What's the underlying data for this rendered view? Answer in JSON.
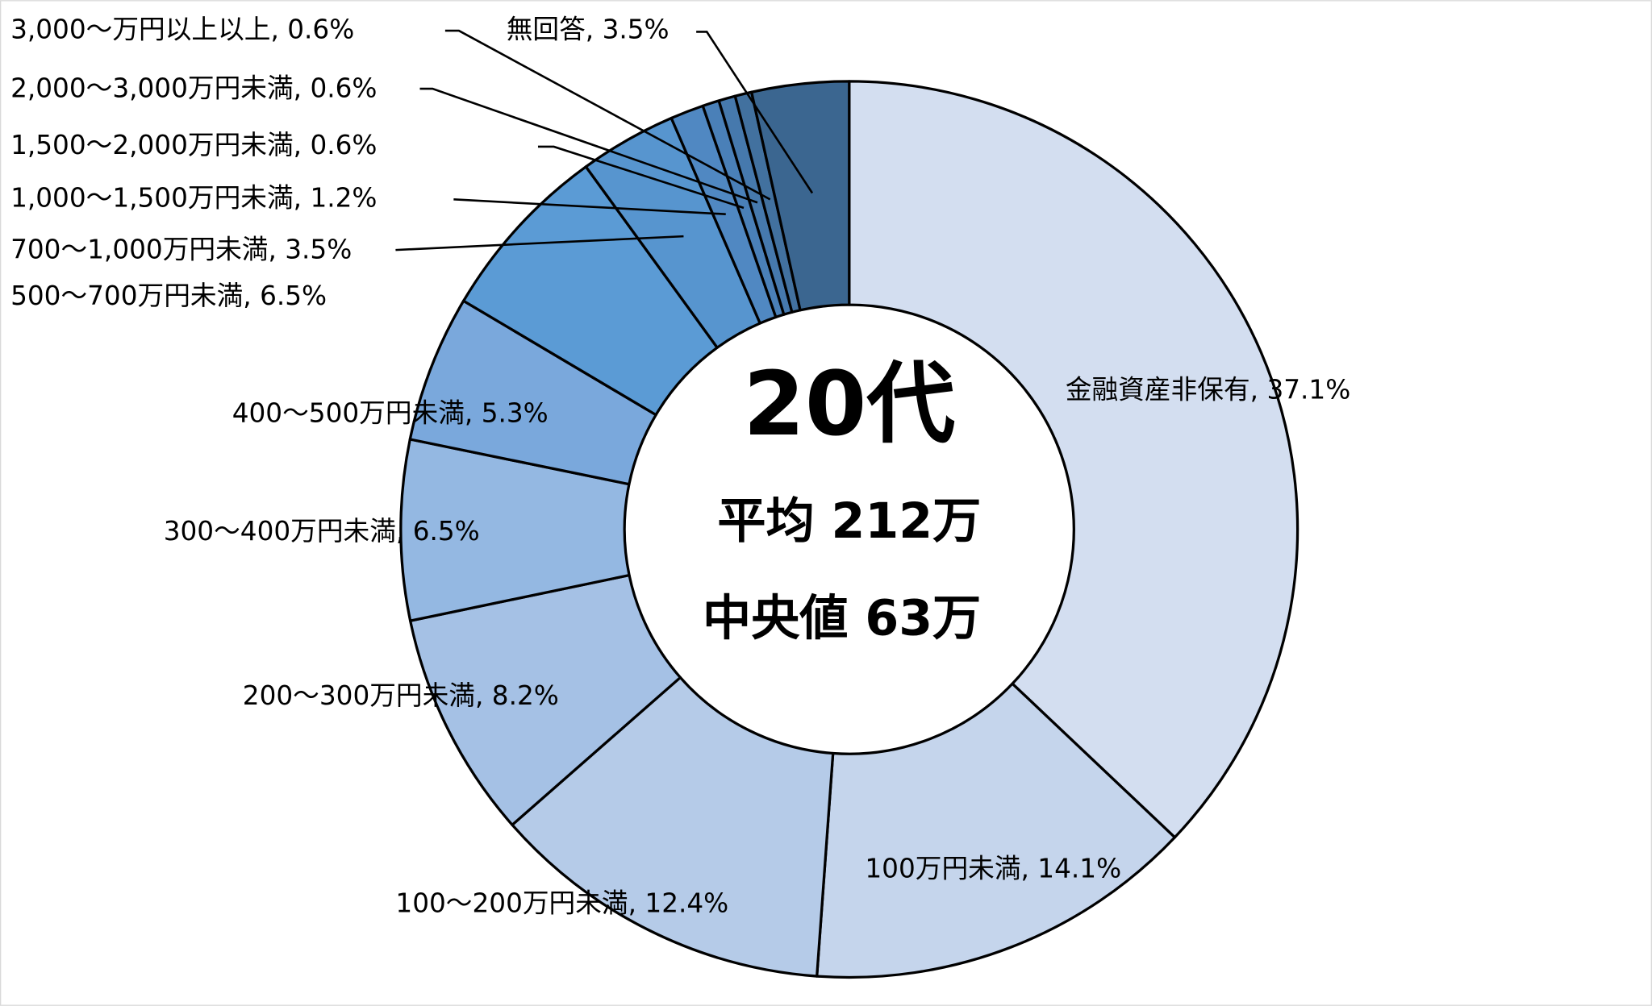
{
  "chart_data": {
    "type": "donut",
    "center_title": "20代",
    "center_lines": [
      "平均 212万",
      "中央値 63万"
    ],
    "categories": [
      "金融資産非保有",
      "100万円未満",
      "100～200万円未満",
      "200～300万円未満",
      "300～400万円未満",
      "400～500万円未満",
      "500～700万円未満",
      "700～1,000万円未満",
      "1,000～1,500万円未満",
      "1,500～2,000万円未満",
      "2,000～3,000万円未満",
      "3,000～万円以上以上",
      "無回答"
    ],
    "values": [
      37.1,
      14.1,
      12.4,
      8.2,
      6.5,
      5.3,
      6.5,
      3.5,
      1.2,
      0.6,
      0.6,
      0.6,
      3.5
    ],
    "value_labels": [
      "37.1%",
      "14.1%",
      "12.4%",
      "8.2%",
      "6.5%",
      "5.3%",
      "6.5%",
      "3.5%",
      "1.2%",
      "0.6%",
      "0.6%",
      "0.6%",
      "3.5%"
    ],
    "colors": [
      "#d3def0",
      "#c5d5ec",
      "#b5cbe8",
      "#a5c1e5",
      "#94b8e2",
      "#7aa8dc",
      "#5b9bd5",
      "#5795cf",
      "#5088c2",
      "#4a80b8",
      "#4679ad",
      "#42719f",
      "#3b6690"
    ]
  }
}
